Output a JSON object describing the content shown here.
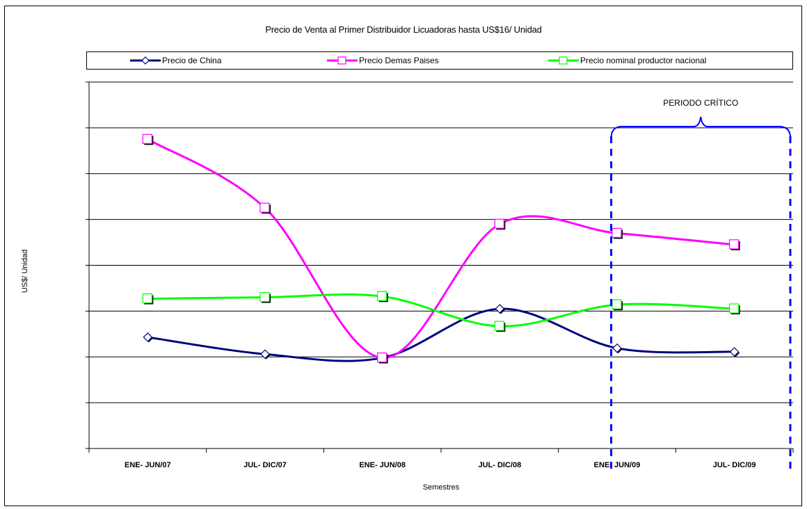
{
  "chart_data": {
    "type": "line",
    "title": "Precio de Venta al Primer Distribuidor Licuadoras hasta US$16/ Unidad",
    "xlabel": "Semestres",
    "ylabel": "US$/ Unidad",
    "categories": [
      "ENE- JUN/07",
      "JUL- DIC/07",
      "ENE- JUN/08",
      "JUL- DIC/08",
      "ENE- JUN/09",
      "JUL- DIC/09"
    ],
    "ylim": [
      0,
      8
    ],
    "grid": true,
    "legend_position": "top",
    "series": [
      {
        "name": "Precio de China",
        "color": "#000080",
        "marker": "diamond",
        "values": [
          2.43,
          2.06,
          1.98,
          3.05,
          2.19,
          2.11
        ]
      },
      {
        "name": "Precio Demas Paises",
        "color": "#ff00ff",
        "marker": "square",
        "values": [
          6.75,
          5.25,
          1.98,
          4.9,
          4.7,
          4.45
        ]
      },
      {
        "name": "Precio nominal productor nacional",
        "color": "#00ff00",
        "marker": "square",
        "values": [
          3.27,
          3.3,
          3.32,
          2.67,
          3.14,
          3.05
        ]
      }
    ],
    "annotations": [
      {
        "text": "PERIODO CRÍTICO",
        "x_from": "ENE- JUN/09",
        "x_to": "JUL- DIC/09",
        "color": "#0000ff"
      }
    ]
  }
}
